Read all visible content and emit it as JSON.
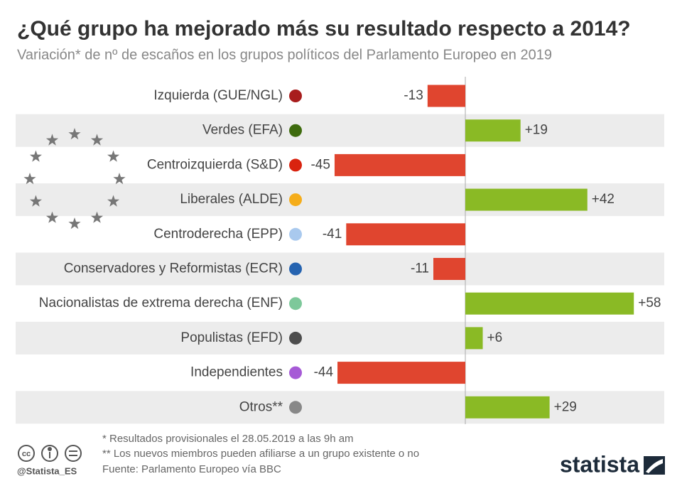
{
  "chart_data": {
    "type": "bar",
    "title": "¿Qué grupo ha mejorado más su resultado respecto a 2014?",
    "subtitle": "Variación* de nº de escaños en los grupos políticos del Parlamento Europeo en 2019",
    "categories": [
      "Izquierda (GUE/NGL)",
      "Verdes (EFA)",
      "Centroizquierda (S&D)",
      "Liberales (ALDE)",
      "Centroderecha (EPP)",
      "Conservadores y Reformistas (ECR)",
      "Nacionalistas de extrema derecha (ENF)",
      "Populistas (EFD)",
      "Independientes",
      "Otros**"
    ],
    "category_colors": [
      "#a81d1d",
      "#3e6b0e",
      "#d9230f",
      "#f5ad1a",
      "#a9c9ee",
      "#2563b0",
      "#7dc89a",
      "#4d4d4d",
      "#a65ad6",
      "#888888"
    ],
    "values": [
      -13,
      19,
      -45,
      42,
      -41,
      -11,
      58,
      6,
      -44,
      29
    ],
    "value_labels": [
      "-13",
      "+19",
      "-45",
      "+42",
      "-41",
      "-11",
      "+58",
      "+6",
      "-44",
      "+29"
    ],
    "color_negative": "#e0452f",
    "color_positive": "#8aba25",
    "notes": [
      "*   Resultados provisionales el 28.05.2019 a las 9h am",
      "** Los nuevos miembros pueden afiliarse a un grupo existente o no",
      "Fuente: Parlamento Europeo vía BBC"
    ],
    "handle": "@Statista_ES",
    "logo": "statista"
  }
}
